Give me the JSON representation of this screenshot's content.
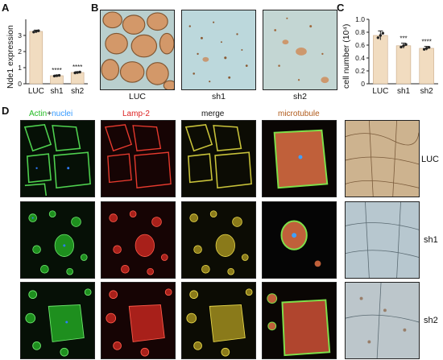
{
  "panels": {
    "A": "A",
    "B": "B",
    "C": "C",
    "D": "D"
  },
  "panelA": {
    "ylabel": "Nde1 expression",
    "chart_data": {
      "type": "bar",
      "categories": [
        "LUC",
        "sh1",
        "sh2"
      ],
      "values": [
        3.25,
        0.5,
        0.7
      ],
      "errors": [
        0.08,
        0.04,
        0.05
      ],
      "significance": [
        "",
        "****",
        "****"
      ],
      "yticks": [
        "0",
        "1",
        "2",
        "3"
      ],
      "ylim": [
        0,
        4
      ],
      "xlabel": "",
      "ylabel": "Nde1 expression",
      "title": ""
    }
  },
  "panelB": {
    "labels": [
      "LUC",
      "sh1",
      "sh2"
    ]
  },
  "panelC": {
    "ylabel": "cell number (10⁴)",
    "chart_data": {
      "type": "bar",
      "categories": [
        "LUC",
        "sh1",
        "sh2"
      ],
      "values": [
        0.75,
        0.59,
        0.55
      ],
      "errors": [
        0.07,
        0.04,
        0.03
      ],
      "significance": [
        "",
        "***",
        "****"
      ],
      "yticks": [
        "0",
        "0.2",
        "0.4",
        "0.6",
        "0.8",
        "1.0"
      ],
      "ylim": [
        0,
        1.0
      ],
      "xlabel": "",
      "ylabel": "cell number (10⁴)",
      "title": ""
    }
  },
  "panelD": {
    "header_actin": "Actin",
    "header_plus": "+",
    "header_nuclei": "nuclei",
    "header_lamp": "Lamp-2",
    "header_merge": "merge",
    "header_microtubule": "microtubule",
    "rows": [
      "LUC",
      "sh1",
      "sh2"
    ]
  },
  "colors": {
    "bar": "#f1dcc0",
    "bar_edge": "#c9a885",
    "actin": "#22bb22",
    "nuclei": "#3399ff",
    "lamp": "#dd2222",
    "microtubule": "#b05a1a"
  }
}
